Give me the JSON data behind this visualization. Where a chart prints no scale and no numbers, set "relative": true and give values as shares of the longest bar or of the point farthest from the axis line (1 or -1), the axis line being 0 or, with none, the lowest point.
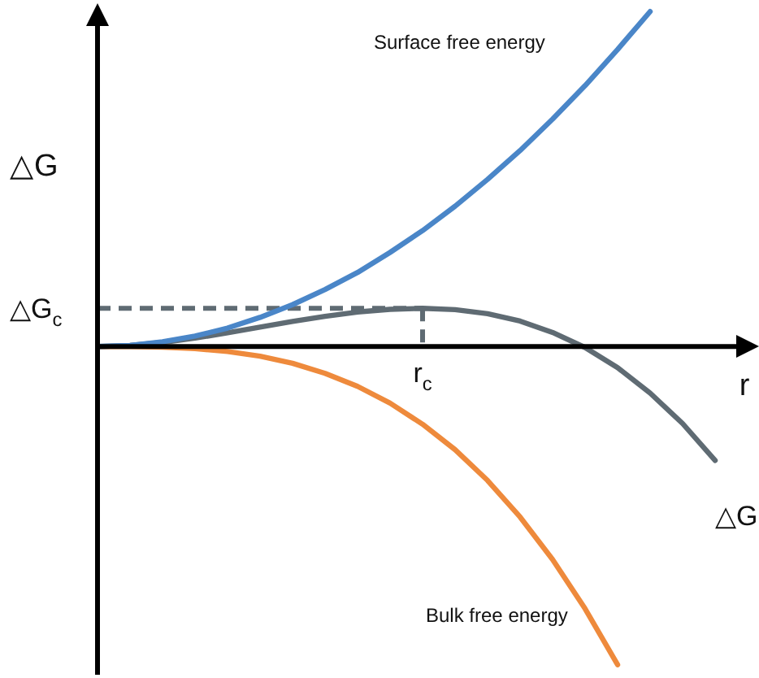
{
  "chart_data": {
    "type": "line",
    "relative": true,
    "xlabel": "r",
    "ylabel": "△G",
    "categories": [
      null,
      null,
      null,
      null,
      null,
      null,
      null,
      null,
      null,
      null,
      null,
      null,
      null,
      null,
      null,
      null,
      null,
      null,
      null,
      null
    ],
    "series": [
      {
        "name": "Surface free energy",
        "color": "#4a86c8",
        "values": [
          0,
          0.003,
          0.014,
          0.031,
          0.055,
          0.087,
          0.125,
          0.17,
          0.221,
          0.281,
          0.346,
          0.419,
          0.499,
          0.585,
          0.679,
          0.779,
          0.887,
          1.0,
          null,
          null
        ]
      },
      {
        "name": "Bulk free energy",
        "color": "#ee8a3c",
        "values": [
          0,
          -0.0002,
          -0.002,
          -0.006,
          -0.015,
          -0.029,
          -0.05,
          -0.08,
          -0.119,
          -0.169,
          -0.232,
          -0.308,
          -0.4,
          -0.509,
          -0.636,
          -0.783,
          -0.95,
          null,
          null,
          null
        ]
      },
      {
        "name": "△G",
        "color": "#5f6b73",
        "values": [
          0,
          0.003,
          0.012,
          0.025,
          0.041,
          0.058,
          0.075,
          0.09,
          0.103,
          0.111,
          0.114,
          0.11,
          0.098,
          0.076,
          0.042,
          -0.003,
          -0.063,
          -0.139,
          -0.23,
          -0.34
        ]
      }
    ],
    "ref_lines": [
      {
        "axis": "y",
        "value": 0.114,
        "label": "△G$_{c}$",
        "color": "#5f6b73",
        "line_style": "dashed"
      }
    ],
    "annotations": [
      "r$_{c}$"
    ],
    "legend": false,
    "marker": "none",
    "line_style": "solid"
  }
}
